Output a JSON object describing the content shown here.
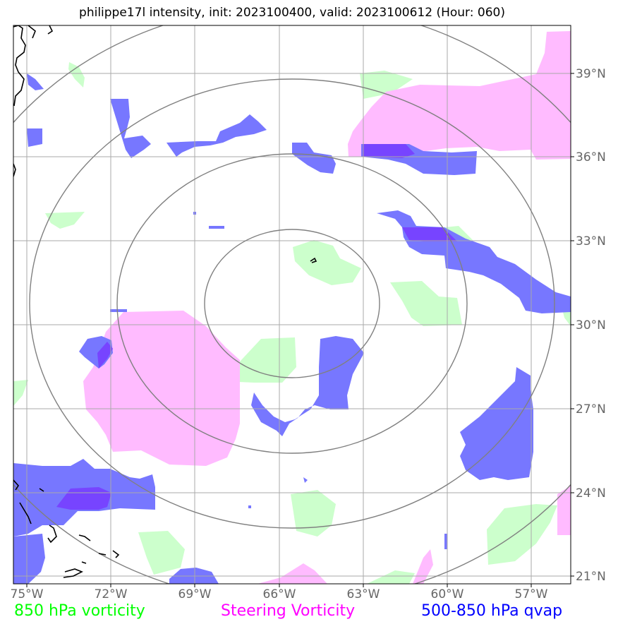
{
  "title": "philippe17l intensity, init: 2023100400, valid: 2023100612 (Hour: 060)",
  "longitude_labels": [
    "75°W",
    "72°W",
    "69°W",
    "66°W",
    "63°W",
    "60°W",
    "57°W"
  ],
  "latitude_labels": [
    "39°N",
    "36°N",
    "33°N",
    "30°N",
    "27°N",
    "24°N",
    "21°N"
  ],
  "legend": {
    "vort850": "850 hPa vorticity",
    "steering": "Steering Vorticity",
    "qvap": "500-850 hPa qvap"
  },
  "colors": {
    "vort850": "#ccffcc",
    "steering": "#ffbbff",
    "qvap": "#7777ff",
    "overlap": "#7744ff",
    "grid": "#aaaaaa",
    "rings": "#808080",
    "coast": "#000000"
  }
}
